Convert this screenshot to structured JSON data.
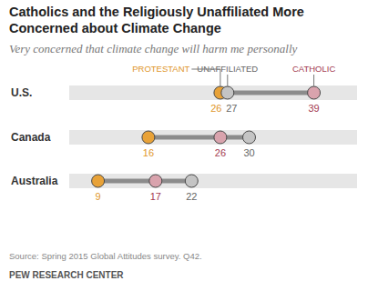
{
  "chart_data": {
    "type": "dot",
    "title": "Catholics and the Religiously Unaffiliated More Concerned about Climate Change",
    "subtitle": "Very concerned that climate change will harm me personally",
    "categories": [
      "U.S.",
      "Canada",
      "Australia"
    ],
    "series": [
      {
        "name": "PROTESTANT",
        "color": "#e8a238",
        "values": [
          26,
          16,
          9
        ]
      },
      {
        "name": "UNAFFILIATED",
        "color": "#c4c4c4",
        "values": [
          27,
          30,
          22
        ]
      },
      {
        "name": "CATHOLIC",
        "color": "#d9a3ad",
        "values": [
          39,
          26,
          17
        ]
      }
    ],
    "xlim": [
      5,
      45
    ],
    "orientation": "horizontal",
    "tick_labels": false,
    "data_labels": true,
    "source": "Source: Spring 2015 Global Attitudes survey. Q42.",
    "credit": "PEW RESEARCH CENTER"
  }
}
